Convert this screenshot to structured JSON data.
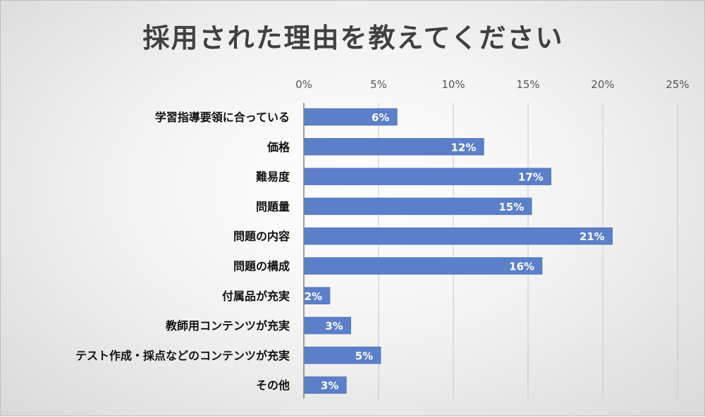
{
  "chart_data": {
    "type": "bar",
    "orientation": "horizontal",
    "title": "採用された理由を教えてください",
    "xlabel": "",
    "ylabel": "",
    "xlim": [
      0,
      25
    ],
    "ticks": [
      "0%",
      "5%",
      "10%",
      "15%",
      "20%",
      "25%"
    ],
    "tick_values": [
      0,
      5,
      10,
      15,
      20,
      25
    ],
    "x_axis_position": "top",
    "grid": true,
    "legend": "none",
    "categories": [
      "学習指導要領に合っている",
      "価格",
      "難易度",
      "問題量",
      "問題の内容",
      "問題の構成",
      "付属品が充実",
      "教師用コンテンツが充実",
      "テスト作成・採点などのコンテンツが充実",
      "その他"
    ],
    "values": [
      6.2,
      12,
      16.5,
      15.2,
      20.6,
      15.9,
      1.7,
      3.1,
      5.1,
      2.8
    ],
    "data_labels": [
      "6%",
      "12%",
      "17%",
      "15%",
      "21%",
      "16%",
      "2%",
      "3%",
      "5%",
      "3%"
    ],
    "colors": {
      "bar": "#5b7fc8",
      "bar_edge": "#4a6fb8",
      "label_text": "#ffffff",
      "title_text": "#404040",
      "category_text": "#111111",
      "tick_text": "#555555",
      "gridline": "#c8c8c8",
      "axis_line": "#7f7f7f"
    }
  }
}
